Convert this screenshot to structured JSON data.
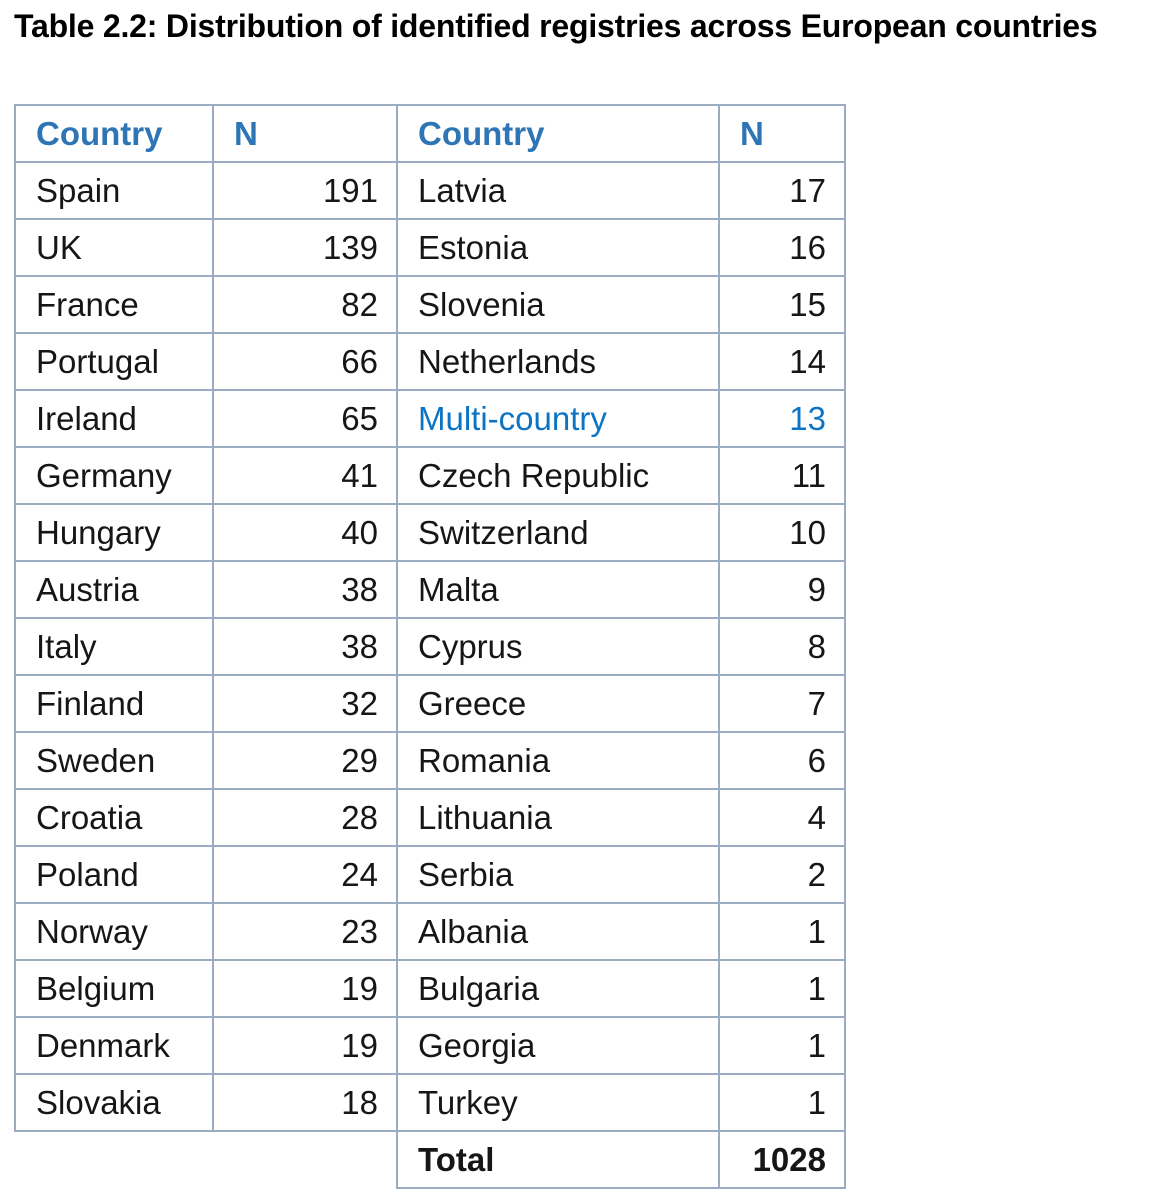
{
  "title": "Table 2.2: Distribution of identified registries across European countries",
  "colors": {
    "header_text": "#2E75B6",
    "highlight_text": "#0C74C4",
    "border": "#9AABC2",
    "body_text": "#161616"
  },
  "table": {
    "headers": [
      "Country",
      "N",
      "Country",
      "N"
    ],
    "rows": [
      {
        "cells": [
          "Spain",
          "191",
          "Latvia",
          "17"
        ],
        "styles": [
          "",
          "",
          "",
          ""
        ]
      },
      {
        "cells": [
          "UK",
          "139",
          "Estonia",
          "16"
        ],
        "styles": [
          "",
          "",
          "",
          ""
        ]
      },
      {
        "cells": [
          "France",
          "82",
          "Slovenia",
          "15"
        ],
        "styles": [
          "",
          "",
          "",
          ""
        ]
      },
      {
        "cells": [
          "Portugal",
          "66",
          "Netherlands",
          "14"
        ],
        "styles": [
          "",
          "",
          "",
          ""
        ]
      },
      {
        "cells": [
          "Ireland",
          "65",
          "Multi-country",
          "13"
        ],
        "styles": [
          "",
          "",
          "hl",
          "hl"
        ]
      },
      {
        "cells": [
          "Germany",
          "41",
          "Czech Republic",
          "11"
        ],
        "styles": [
          "",
          "",
          "",
          ""
        ]
      },
      {
        "cells": [
          "Hungary",
          "40",
          "Switzerland",
          "10"
        ],
        "styles": [
          "",
          "",
          "",
          ""
        ]
      },
      {
        "cells": [
          "Austria",
          "38",
          "Malta",
          "9"
        ],
        "styles": [
          "",
          "",
          "",
          ""
        ]
      },
      {
        "cells": [
          "Italy",
          "38",
          "Cyprus",
          "8"
        ],
        "styles": [
          "",
          "",
          "",
          ""
        ]
      },
      {
        "cells": [
          "Finland",
          "32",
          "Greece",
          "7"
        ],
        "styles": [
          "",
          "",
          "",
          ""
        ]
      },
      {
        "cells": [
          "Sweden",
          "29",
          "Romania",
          "6"
        ],
        "styles": [
          "",
          "",
          "",
          ""
        ]
      },
      {
        "cells": [
          "Croatia",
          "28",
          "Lithuania",
          "4"
        ],
        "styles": [
          "",
          "",
          "",
          ""
        ]
      },
      {
        "cells": [
          "Poland",
          "24",
          "Serbia",
          "2"
        ],
        "styles": [
          "",
          "",
          "",
          ""
        ]
      },
      {
        "cells": [
          "Norway",
          "23",
          "Albania",
          "1"
        ],
        "styles": [
          "",
          "",
          "",
          ""
        ]
      },
      {
        "cells": [
          "Belgium",
          "19",
          "Bulgaria",
          "1"
        ],
        "styles": [
          "",
          "",
          "",
          ""
        ]
      },
      {
        "cells": [
          "Denmark",
          "19",
          "Georgia",
          "1"
        ],
        "styles": [
          "",
          "",
          "",
          ""
        ]
      },
      {
        "cells": [
          "Slovakia",
          "18",
          "Turkey",
          "1"
        ],
        "styles": [
          "",
          "",
          "",
          ""
        ]
      },
      {
        "cells": [
          "",
          "",
          "Total",
          "1028"
        ],
        "styles": [
          "blank",
          "blank",
          "total",
          "total"
        ]
      }
    ]
  }
}
